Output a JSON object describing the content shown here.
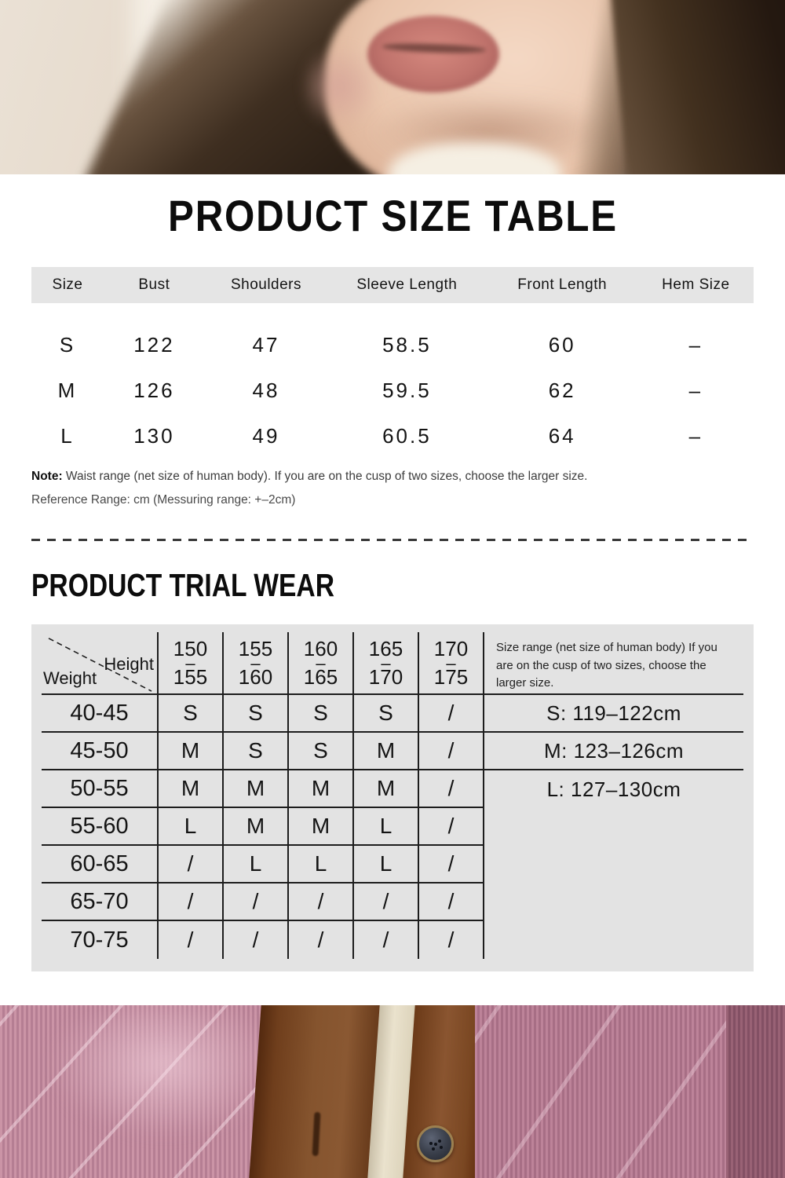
{
  "page": {
    "title": "PRODUCT SIZE TABLE",
    "section2_title": "PRODUCT TRIAL WEAR"
  },
  "size_table": {
    "columns": [
      "Size",
      "Bust",
      "Shoulders",
      "Sleeve Length",
      "Front Length",
      "Hem Size"
    ],
    "rows": [
      [
        "S",
        "122",
        "47",
        "58.5",
        "60",
        "–"
      ],
      [
        "M",
        "126",
        "48",
        "59.5",
        "62",
        "–"
      ],
      [
        "L",
        "130",
        "49",
        "60.5",
        "64",
        "–"
      ]
    ]
  },
  "notes": {
    "note_label": "Note:",
    "note_text": " Waist range (net size of human body). If you are on the cusp of two sizes, choose the larger size.",
    "reference": "Reference Range: cm (Messuring range: +–2cm)"
  },
  "trial_table": {
    "corner": {
      "height_label": "Height",
      "weight_label": "Weight"
    },
    "height_columns": [
      [
        "150",
        "155"
      ],
      [
        "155",
        "160"
      ],
      [
        "160",
        "165"
      ],
      [
        "165",
        "170"
      ],
      [
        "170",
        "175"
      ]
    ],
    "side_note": "Size range (net size of human body) If you are on the cusp of two sizes, choose the larger size.",
    "rows": [
      {
        "weight": "40-45",
        "values": [
          "S",
          "S",
          "S",
          "S",
          "/"
        ],
        "range": "S: 119–122cm"
      },
      {
        "weight": "45-50",
        "values": [
          "M",
          "S",
          "S",
          "M",
          "/"
        ],
        "range": "M: 123–126cm"
      },
      {
        "weight": "50-55",
        "values": [
          "M",
          "M",
          "M",
          "M",
          "/"
        ],
        "range": "L: 127–130cm"
      },
      {
        "weight": "55-60",
        "values": [
          "L",
          "M",
          "M",
          "L",
          "/"
        ],
        "range": ""
      },
      {
        "weight": "60-65",
        "values": [
          "/",
          "L",
          "L",
          "L",
          "/"
        ],
        "range": ""
      },
      {
        "weight": "65-70",
        "values": [
          "/",
          "/",
          "/",
          "/",
          "/"
        ],
        "range": ""
      },
      {
        "weight": "70-75",
        "values": [
          "/",
          "/",
          "/",
          "/",
          "/"
        ],
        "range": ""
      }
    ]
  },
  "images": {
    "top_photo": "model-face-closeup-photo",
    "bottom_photo": "pink-corduroy-jacket-closeup-photo"
  },
  "colors": {
    "size_header_bg": "#e5e5e5",
    "trial_panel_bg": "#e3e3e3",
    "table_line": "#1d1d1d",
    "divider": "#3a3a3a",
    "pink_fabric": "#bd8399",
    "brown_placket": "#8a5530",
    "cream_lining": "#eae2cd",
    "button": "#3c414d"
  }
}
